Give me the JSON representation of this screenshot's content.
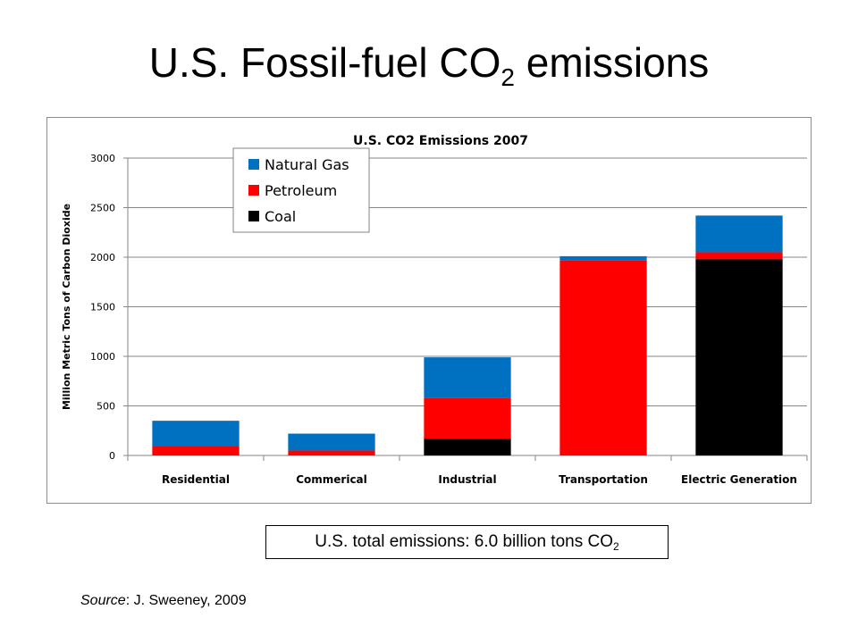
{
  "slide": {
    "title_main": "U.S. Fossil-fuel CO",
    "title_sub": "2",
    "title_end": " emissions",
    "total_main": "U.S. total emissions: 6.0 billion tons CO",
    "total_sub": "2",
    "source_label": "Source",
    "source_text": ": J. Sweeney, 2009"
  },
  "chart_data": {
    "type": "bar",
    "stacked": true,
    "title": "U.S. CO2 Emissions 2007",
    "xlabel": "",
    "ylabel": "Million Metric Tons of Carbon Dioxide",
    "ylim": [
      0,
      3000
    ],
    "yticks": [
      0,
      500,
      1000,
      1500,
      2000,
      2500,
      3000
    ],
    "categories": [
      "Residential",
      "Commerical",
      "Industrial",
      "Transportation",
      "Electric Generation"
    ],
    "series": [
      {
        "name": "Coal",
        "color": "#000000",
        "values": [
          0,
          0,
          170,
          0,
          1980
        ]
      },
      {
        "name": "Petroleum",
        "color": "#ff0000",
        "values": [
          90,
          50,
          410,
          1970,
          70
        ]
      },
      {
        "name": "Natural Gas",
        "color": "#0070c0",
        "values": [
          260,
          170,
          410,
          40,
          370
        ]
      }
    ],
    "legend_order": [
      "Natural Gas",
      "Petroleum",
      "Coal"
    ],
    "legend_position": "top-left",
    "grid": true
  }
}
